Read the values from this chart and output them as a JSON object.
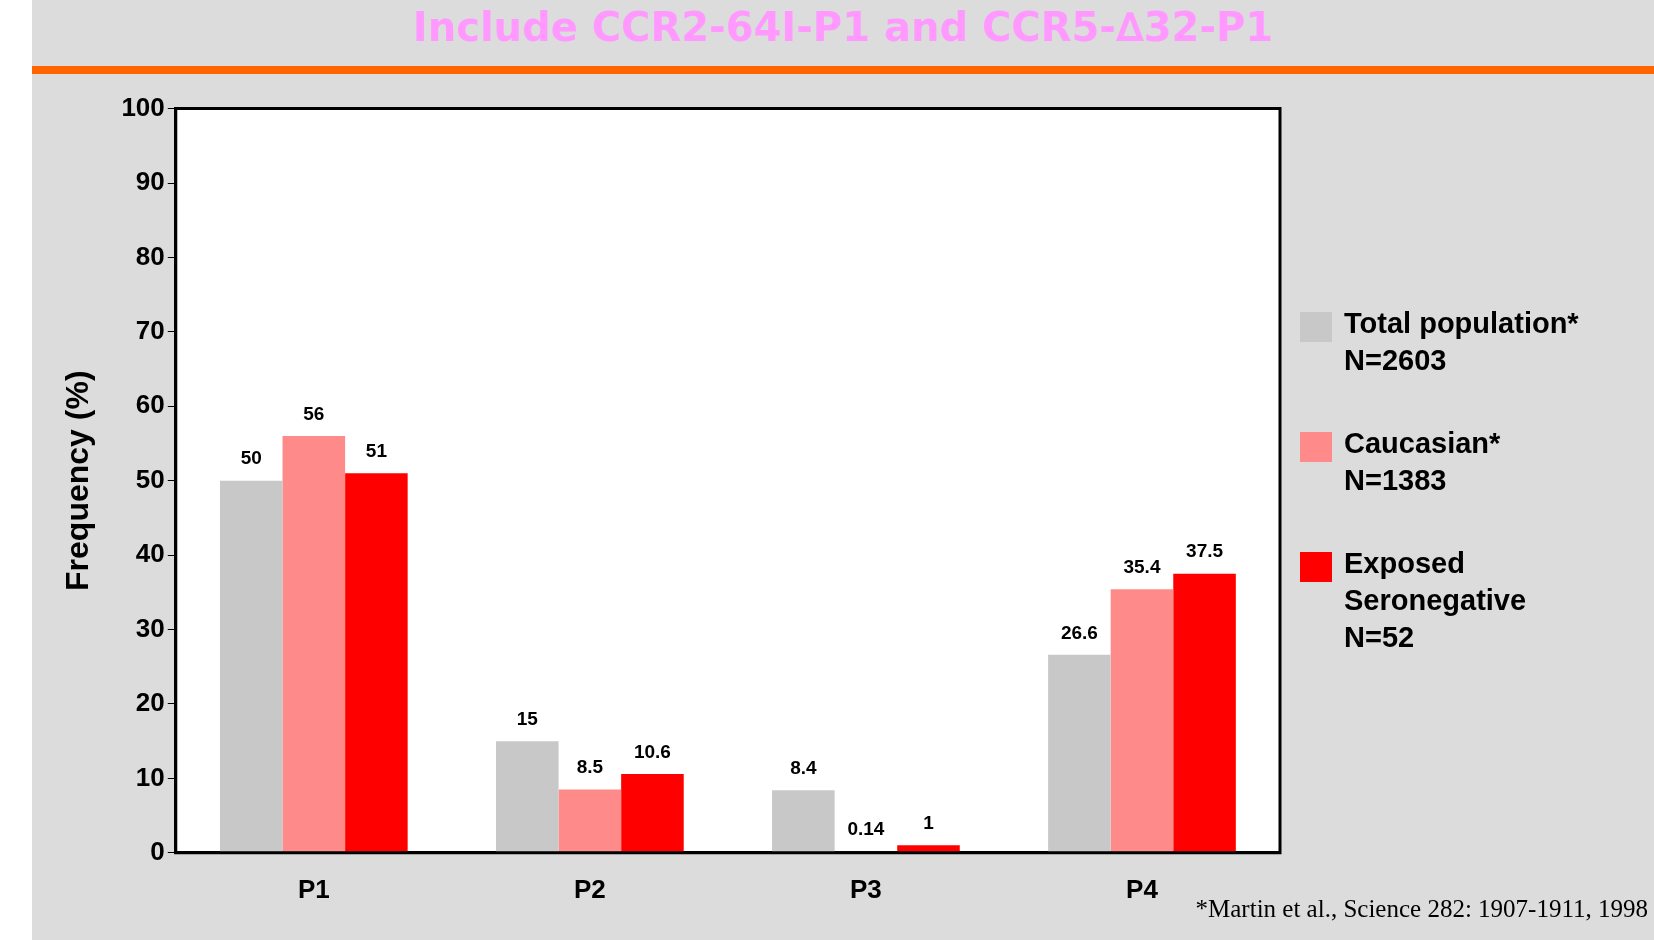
{
  "chart_data": {
    "type": "bar",
    "title": "Include CCR2-64I-P1 and CCR5-∆32-P1",
    "ylabel": "Frequency (%)",
    "categories": [
      "P1",
      "P2",
      "P3",
      "P4"
    ],
    "series": [
      {
        "name": "Total population*\nN=2603",
        "color": "#c8c8c8",
        "values": [
          50,
          15,
          8.4,
          26.6
        ]
      },
      {
        "name": "Caucasian*\nN=1383",
        "color": "#ff8a8a",
        "values": [
          56,
          8.5,
          0.14,
          35.4
        ]
      },
      {
        "name": "Exposed\nSeronegative\nN=52",
        "color": "#ff0000",
        "values": [
          51,
          10.6,
          1,
          37.5
        ]
      }
    ],
    "ylim": [
      0,
      100
    ],
    "yticks": [
      0,
      10,
      20,
      30,
      40,
      50,
      60,
      70,
      80,
      90,
      100
    ],
    "grid": false,
    "legend": "right",
    "data_labels": true,
    "annotations": [
      "*Martin et al., Science 282: 1907-1911, 1998"
    ]
  }
}
